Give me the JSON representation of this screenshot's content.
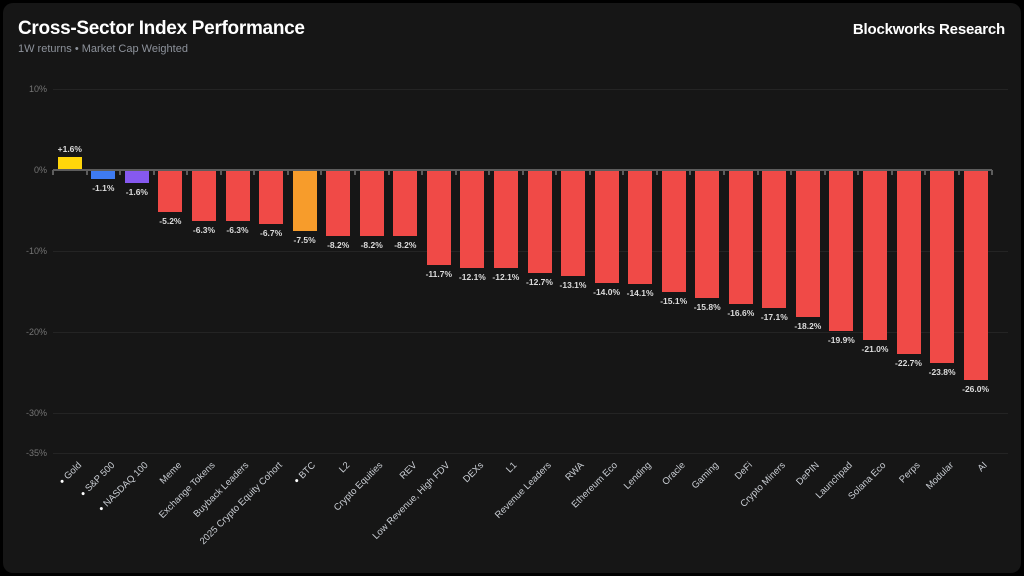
{
  "header": {
    "title": "Cross-Sector Index Performance",
    "subtitle": "1W returns • Market Cap Weighted",
    "brand": "Blockworks Research"
  },
  "chart_data": {
    "type": "bar",
    "title": "Cross-Sector Index Performance",
    "subtitle": "1W returns • Market Cap Weighted",
    "unit": "%",
    "ylim": [
      -35,
      10
    ],
    "y_tick_labels": [
      "10%",
      "0%",
      "-10%",
      "-20%",
      "-30%",
      "-35%"
    ],
    "y_tick_values": [
      10,
      0,
      -10,
      -20,
      -30,
      -35
    ],
    "gridline_values": [
      10,
      -10,
      -20,
      -30,
      -35
    ],
    "legend": "none",
    "colors": {
      "default_bar": "#F04A47",
      "gold_bar": "#FFD60A",
      "sp500_bar": "#3E7BF2",
      "nasdaq_bar": "#8659F0",
      "btc_bar": "#F79C2B",
      "panel_background": "#161616",
      "page_background": "#000000"
    },
    "series": [
      {
        "name": "Gold",
        "value": 1.6,
        "label": "+1.6%",
        "color": "#FFD60A",
        "bullet": true
      },
      {
        "name": "S&P 500",
        "value": -1.1,
        "label": "-1.1%",
        "color": "#3E7BF2",
        "bullet": true
      },
      {
        "name": "NASDAQ 100",
        "value": -1.6,
        "label": "-1.6%",
        "color": "#8659F0",
        "bullet": true
      },
      {
        "name": "Meme",
        "value": -5.2,
        "label": "-5.2%",
        "color": "#F04A47",
        "bullet": false
      },
      {
        "name": "Exchange Tokens",
        "value": -6.3,
        "label": "-6.3%",
        "color": "#F04A47",
        "bullet": false
      },
      {
        "name": "Buyback Leaders",
        "value": -6.3,
        "label": "-6.3%",
        "color": "#F04A47",
        "bullet": false
      },
      {
        "name": "2025 Crypto Equity Cohort",
        "value": -6.7,
        "label": "-6.7%",
        "color": "#F04A47",
        "bullet": false
      },
      {
        "name": "BTC",
        "value": -7.5,
        "label": "-7.5%",
        "color": "#F79C2B",
        "bullet": true
      },
      {
        "name": "L2",
        "value": -8.2,
        "label": "-8.2%",
        "color": "#F04A47",
        "bullet": false
      },
      {
        "name": "Crypto Equities",
        "value": -8.2,
        "label": "-8.2%",
        "color": "#F04A47",
        "bullet": false
      },
      {
        "name": "REV",
        "value": -8.2,
        "label": "-8.2%",
        "color": "#F04A47",
        "bullet": false
      },
      {
        "name": "Low Revenue, High FDV",
        "value": -11.7,
        "label": "-11.7%",
        "color": "#F04A47",
        "bullet": false
      },
      {
        "name": "DEXs",
        "value": -12.1,
        "label": "-12.1%",
        "color": "#F04A47",
        "bullet": false
      },
      {
        "name": "L1",
        "value": -12.1,
        "label": "-12.1%",
        "color": "#F04A47",
        "bullet": false
      },
      {
        "name": "Revenue Leaders",
        "value": -12.7,
        "label": "-12.7%",
        "color": "#F04A47",
        "bullet": false
      },
      {
        "name": "RWA",
        "value": -13.1,
        "label": "-13.1%",
        "color": "#F04A47",
        "bullet": false
      },
      {
        "name": "Ethereum Eco",
        "value": -14.0,
        "label": "-14.0%",
        "color": "#F04A47",
        "bullet": false
      },
      {
        "name": "Lending",
        "value": -14.1,
        "label": "-14.1%",
        "color": "#F04A47",
        "bullet": false
      },
      {
        "name": "Oracle",
        "value": -15.1,
        "label": "-15.1%",
        "color": "#F04A47",
        "bullet": false
      },
      {
        "name": "Gaming",
        "value": -15.8,
        "label": "-15.8%",
        "color": "#F04A47",
        "bullet": false
      },
      {
        "name": "DeFi",
        "value": -16.6,
        "label": "-16.6%",
        "color": "#F04A47",
        "bullet": false
      },
      {
        "name": "Crypto Miners",
        "value": -17.1,
        "label": "-17.1%",
        "color": "#F04A47",
        "bullet": false
      },
      {
        "name": "DePIN",
        "value": -18.2,
        "label": "-18.2%",
        "color": "#F04A47",
        "bullet": false
      },
      {
        "name": "Launchpad",
        "value": -19.9,
        "label": "-19.9%",
        "color": "#F04A47",
        "bullet": false
      },
      {
        "name": "Solana Eco",
        "value": -21.0,
        "label": "-21.0%",
        "color": "#F04A47",
        "bullet": false
      },
      {
        "name": "Perps",
        "value": -22.7,
        "label": "-22.7%",
        "color": "#F04A47",
        "bullet": false
      },
      {
        "name": "Modular",
        "value": -23.8,
        "label": "-23.8%",
        "color": "#F04A47",
        "bullet": false
      },
      {
        "name": "AI",
        "value": -26.0,
        "label": "-26.0%",
        "color": "#F04A47",
        "bullet": false
      }
    ]
  }
}
